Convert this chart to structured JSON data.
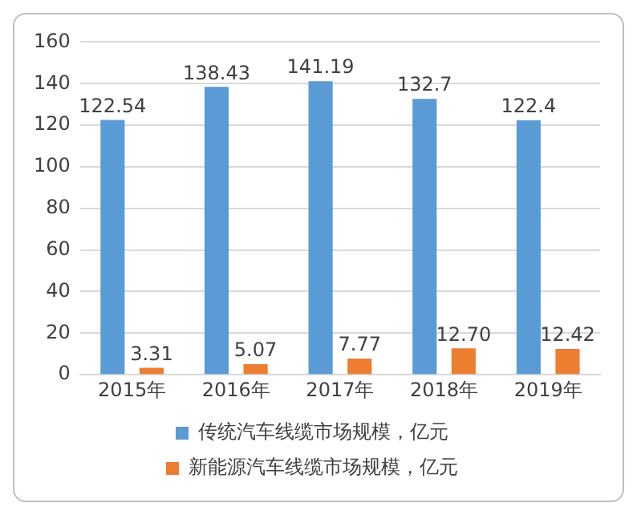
{
  "chart_data": {
    "type": "bar",
    "categories": [
      "2015年",
      "2016年",
      "2017年",
      "2018年",
      "2019年"
    ],
    "series": [
      {
        "name": "传统汽车线缆市场规模，亿元",
        "color": "#5b9bd5",
        "values": [
          122.54,
          138.43,
          141.19,
          132.7,
          122.4
        ],
        "value_labels": [
          "122.54",
          "138.43",
          "141.19",
          "132.7",
          "122.4"
        ]
      },
      {
        "name": "新能源汽车线缆市场规模，亿元",
        "color": "#ed7d31",
        "values": [
          3.31,
          5.07,
          7.77,
          12.7,
          12.42
        ],
        "value_labels": [
          "3.31",
          "5.07",
          "7.77",
          "12.70",
          "12.42"
        ]
      }
    ],
    "ylim": [
      0,
      160
    ],
    "yticks": [
      0,
      20,
      40,
      60,
      80,
      100,
      120,
      140,
      160
    ],
    "grid": "y",
    "legend": "bottom"
  }
}
